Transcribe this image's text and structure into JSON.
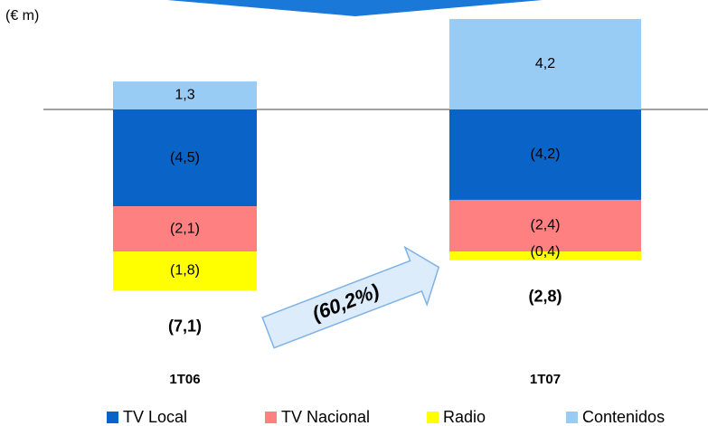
{
  "chart_data": {
    "type": "stacked_bar",
    "unit_label": "(€ m)",
    "categories": [
      "1T06",
      "1T07"
    ],
    "series": [
      {
        "name": "TV Local",
        "color": "#0a64c8",
        "values": [
          -4.5,
          -4.2
        ],
        "value_labels": [
          "(4,5)",
          "(4,2)"
        ]
      },
      {
        "name": "TV Nacional",
        "color": "#ff8080",
        "values": [
          -2.1,
          -2.4
        ],
        "value_labels": [
          "(2,1)",
          "(2,4)"
        ]
      },
      {
        "name": "Radio",
        "color": "#ffff00",
        "values": [
          -1.8,
          -0.4
        ],
        "value_labels": [
          "(1,8)",
          "(0,4)"
        ]
      },
      {
        "name": "Contenidos",
        "color": "#99ccf5",
        "values": [
          1.3,
          4.2
        ],
        "value_labels": [
          "1,3",
          "4,2"
        ]
      }
    ],
    "totals": {
      "values": [
        -7.1,
        -2.8
      ],
      "value_labels": [
        "(7,1)",
        "(2,8)"
      ]
    },
    "annotation": "(60,2%)"
  }
}
